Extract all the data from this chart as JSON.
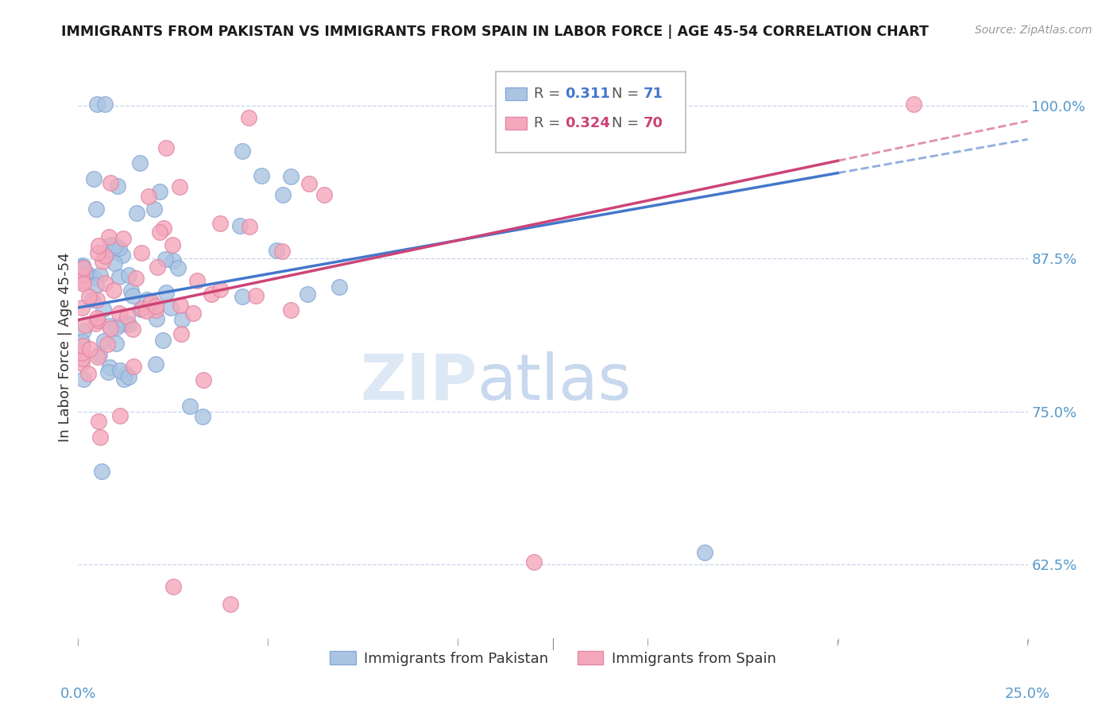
{
  "title": "IMMIGRANTS FROM PAKISTAN VS IMMIGRANTS FROM SPAIN IN LABOR FORCE | AGE 45-54 CORRELATION CHART",
  "source": "Source: ZipAtlas.com",
  "ylabel": "In Labor Force | Age 45-54",
  "ytick_vals": [
    0.625,
    0.75,
    0.875,
    1.0
  ],
  "ytick_labels": [
    "62.5%",
    "75.0%",
    "87.5%",
    "100.0%"
  ],
  "xmin": 0.0,
  "xmax": 0.25,
  "ymin": 0.565,
  "ymax": 1.04,
  "pakistan_R": 0.311,
  "pakistan_N": 71,
  "spain_R": 0.324,
  "spain_N": 70,
  "pakistan_color": "#aac4e2",
  "spain_color": "#f5a8bb",
  "pakistan_line_color": "#4477cc",
  "spain_line_color": "#cc4477",
  "pakistan_edge": "#88aad8",
  "spain_edge": "#e088a8",
  "background_color": "#ffffff",
  "grid_color": "#c8d4e8",
  "watermark_color": "#dde8f5",
  "legend_R_color": "#4477cc",
  "legend_R2_color": "#cc4477"
}
